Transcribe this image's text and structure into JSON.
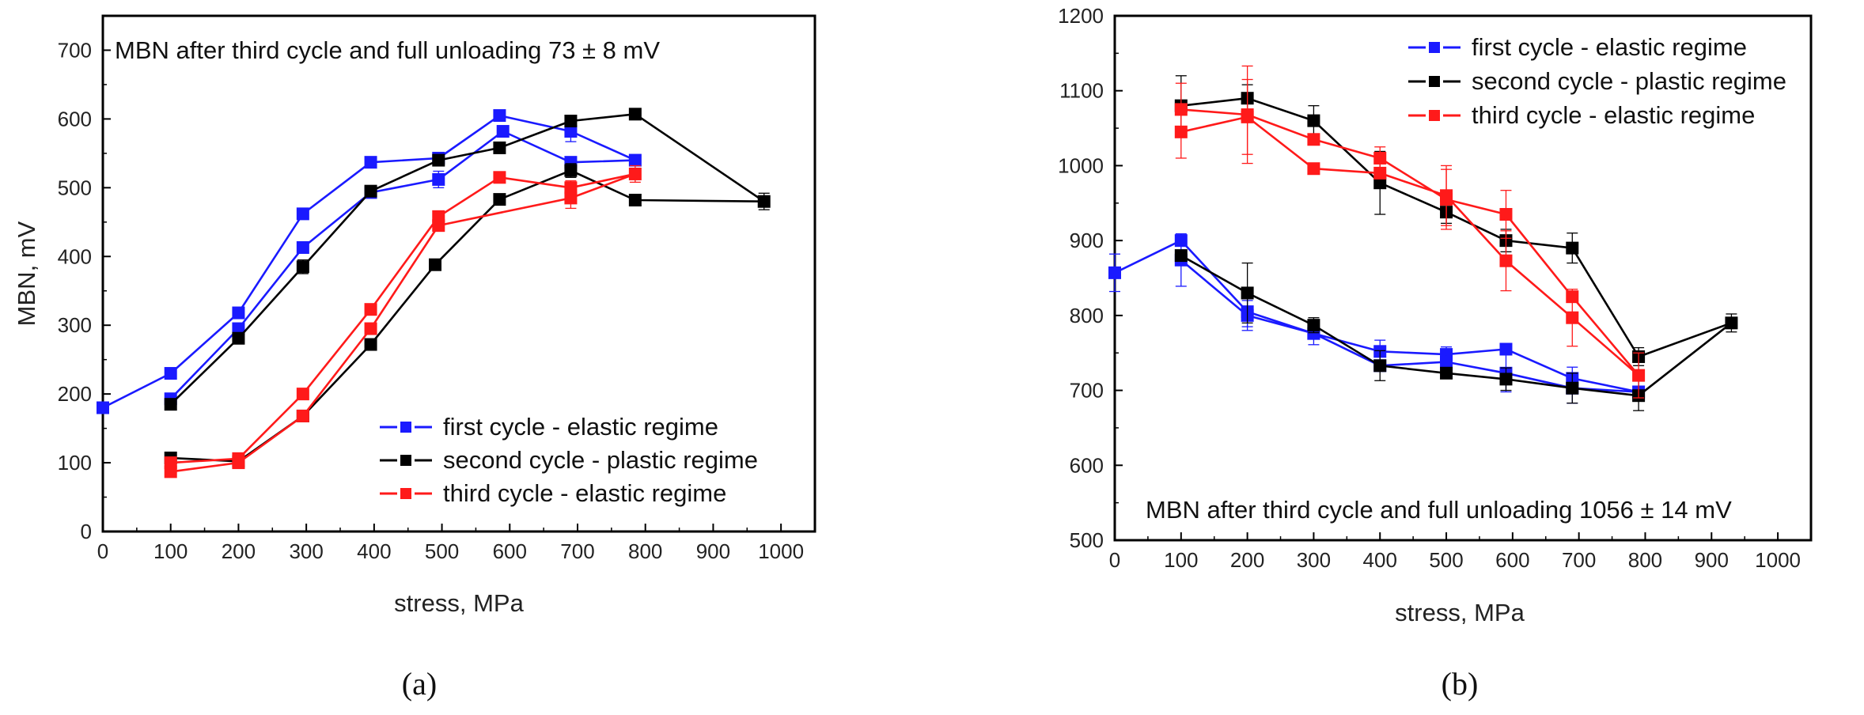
{
  "chart_data": [
    {
      "type": "line",
      "panel_label": "(a)",
      "xlabel": "stress, MPa",
      "ylabel": "MBN, mV",
      "xlim": [
        0,
        1050
      ],
      "ylim": [
        0,
        750
      ],
      "xticks": [
        0,
        100,
        200,
        300,
        400,
        500,
        600,
        700,
        800,
        900,
        1000
      ],
      "yticks": [
        0,
        100,
        200,
        300,
        400,
        500,
        600,
        700
      ],
      "annotation": "MBN after third cycle and full unloading 73 ± 8 mV",
      "legend_position": "bottom-right",
      "series": [
        {
          "name": "first cycle - elastic regime",
          "color": "#1a1aff",
          "points": [
            [
              0,
              180
            ],
            [
              100,
              230
            ],
            [
              200,
              318
            ],
            [
              295,
              462
            ],
            [
              395,
              537
            ],
            [
              495,
              543
            ],
            [
              585,
              605
            ],
            [
              690,
              582
            ],
            [
              785,
              540
            ],
            [
              690,
              537
            ],
            [
              590,
              582
            ],
            [
              495,
              512
            ],
            [
              395,
              493
            ],
            [
              295,
              413
            ],
            [
              200,
              295
            ],
            [
              100,
              193
            ]
          ],
          "errors": [
            0,
            0,
            0,
            0,
            0,
            8,
            0,
            15,
            0,
            0,
            0,
            12,
            0,
            0,
            0,
            0
          ]
        },
        {
          "name": "second cycle - plastic regime",
          "color": "#000000",
          "points": [
            [
              100,
              185
            ],
            [
              200,
              281
            ],
            [
              295,
              385
            ],
            [
              395,
              495
            ],
            [
              495,
              540
            ],
            [
              585,
              558
            ],
            [
              690,
              597
            ],
            [
              785,
              607
            ],
            [
              975,
              480
            ],
            [
              785,
              482
            ],
            [
              690,
              525
            ],
            [
              585,
              483
            ],
            [
              490,
              388
            ],
            [
              395,
              272
            ],
            [
              295,
              168
            ],
            [
              200,
              102
            ],
            [
              100,
              107
            ]
          ],
          "errors": [
            0,
            0,
            10,
            0,
            8,
            0,
            0,
            8,
            12,
            0,
            10,
            0,
            0,
            0,
            0,
            0,
            0
          ]
        },
        {
          "name": "third cycle - elastic regime",
          "color": "#ff1a1a",
          "points": [
            [
              100,
              100
            ],
            [
              200,
              106
            ],
            [
              295,
              200
            ],
            [
              395,
              323
            ],
            [
              495,
              458
            ],
            [
              585,
              515
            ],
            [
              690,
              500
            ],
            [
              785,
              520
            ],
            [
              690,
              485
            ],
            [
              495,
              445
            ],
            [
              395,
              295
            ],
            [
              295,
              168
            ],
            [
              200,
              100
            ],
            [
              100,
              87
            ]
          ],
          "errors": [
            0,
            0,
            0,
            0,
            0,
            0,
            10,
            12,
            15,
            0,
            0,
            0,
            0,
            0
          ]
        }
      ]
    },
    {
      "type": "line",
      "panel_label": "(b)",
      "xlabel": "stress, MPa",
      "ylabel": "",
      "xlim": [
        0,
        1050
      ],
      "ylim": [
        500,
        1200
      ],
      "xticks": [
        0,
        100,
        200,
        300,
        400,
        500,
        600,
        700,
        800,
        900,
        1000
      ],
      "yticks": [
        500,
        600,
        700,
        800,
        900,
        1000,
        1100,
        1200
      ],
      "annotation": "MBN after third cycle and full unloading 1056 ± 14 mV",
      "legend_position": "top-right",
      "series": [
        {
          "name": "first cycle - elastic regime",
          "color": "#1a1aff",
          "points": [
            [
              0,
              857
            ],
            [
              100,
              900
            ],
            [
              200,
              805
            ],
            [
              300,
              776
            ],
            [
              400,
              752
            ],
            [
              500,
              748
            ],
            [
              590,
              755
            ],
            [
              690,
              716
            ],
            [
              790,
              698
            ],
            [
              690,
              703
            ],
            [
              590,
              723
            ],
            [
              500,
              738
            ],
            [
              400,
              733
            ],
            [
              300,
              776
            ],
            [
              200,
              800
            ],
            [
              100,
              874
            ]
          ],
          "errors": [
            25,
            0,
            20,
            0,
            15,
            0,
            0,
            15,
            0,
            20,
            25,
            20,
            0,
            15,
            20,
            35
          ]
        },
        {
          "name": "second cycle - plastic regime",
          "color": "#000000",
          "points": [
            [
              100,
              880
            ],
            [
              200,
              830
            ],
            [
              300,
              787
            ],
            [
              400,
              733
            ],
            [
              500,
              723
            ],
            [
              590,
              715
            ],
            [
              690,
              703
            ],
            [
              790,
              693
            ],
            [
              930,
              790
            ],
            [
              790,
              745
            ],
            [
              690,
              890
            ],
            [
              590,
              900
            ],
            [
              500,
              938
            ],
            [
              400,
              977
            ],
            [
              300,
              1060
            ],
            [
              200,
              1090
            ],
            [
              100,
              1080
            ]
          ],
          "errors": [
            0,
            40,
            10,
            20,
            0,
            15,
            20,
            20,
            12,
            12,
            20,
            15,
            15,
            42,
            20,
            18,
            40
          ]
        },
        {
          "name": "third cycle - elastic regime",
          "color": "#ff1a1a",
          "points": [
            [
              100,
              1075
            ],
            [
              200,
              1068
            ],
            [
              300,
              1035
            ],
            [
              400,
              1010
            ],
            [
              500,
              955
            ],
            [
              590,
              935
            ],
            [
              690,
              825
            ],
            [
              790,
              720
            ],
            [
              690,
              797
            ],
            [
              590,
              873
            ],
            [
              500,
              960
            ],
            [
              400,
              990
            ],
            [
              300,
              996
            ],
            [
              200,
              1065
            ],
            [
              100,
              1045
            ]
          ],
          "errors": [
            35,
            65,
            0,
            15,
            40,
            32,
            0,
            30,
            38,
            40,
            40,
            0,
            0,
            50,
            35
          ]
        }
      ]
    }
  ]
}
